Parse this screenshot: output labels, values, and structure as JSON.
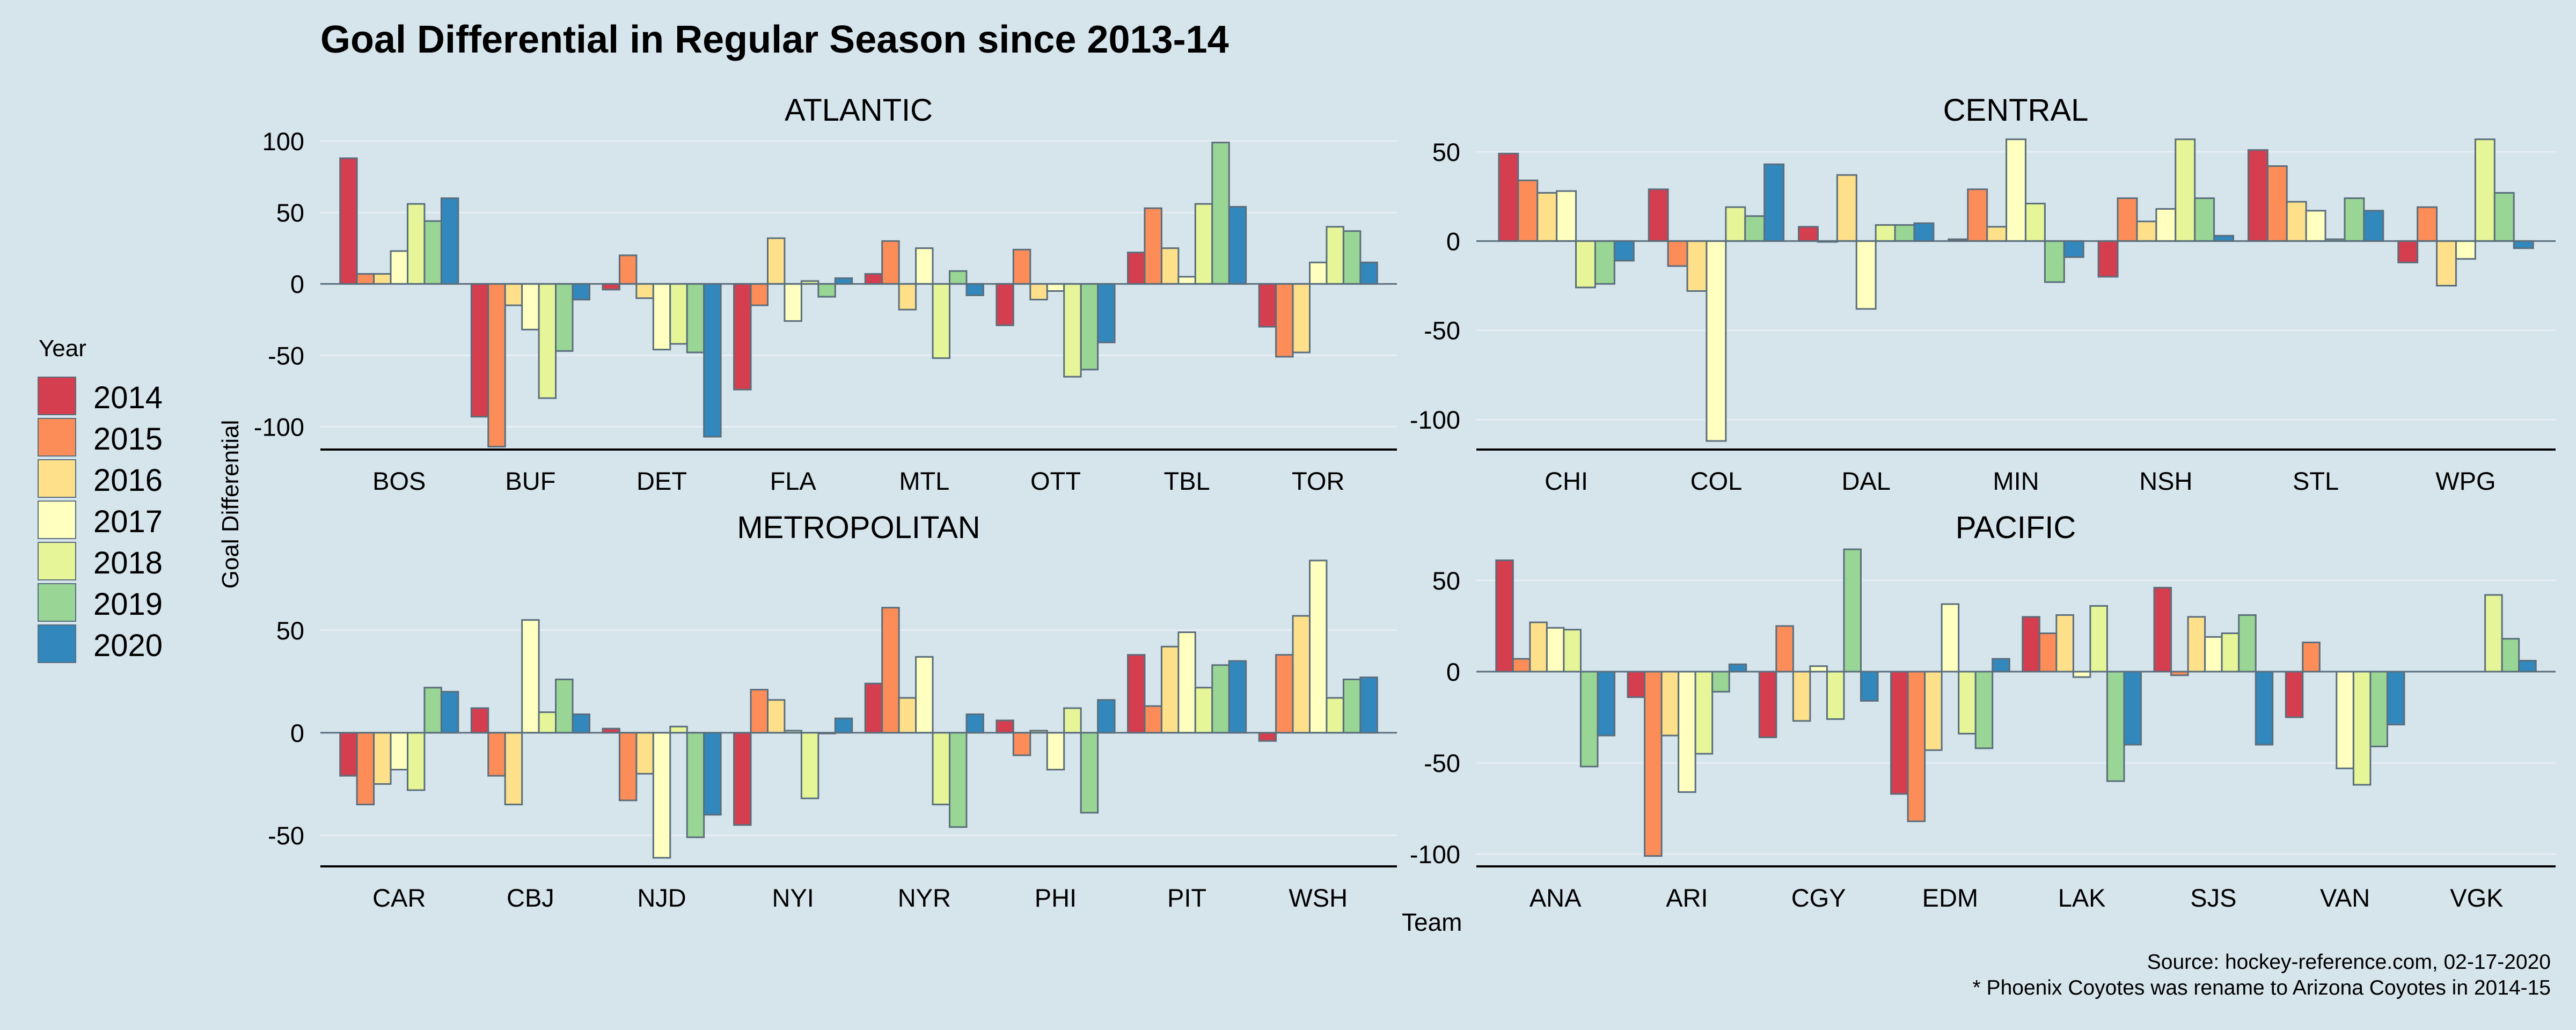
{
  "title": "Goal Differential in Regular Season since 2013-14",
  "ylabel": "Goal Differential",
  "xlabel": "Team",
  "source": "Source: hockey-reference.com, 02-17-2020",
  "note": "* Phoenix Coyotes was rename to Arizona Coyotes in 2014-15",
  "legend": {
    "title": "Year",
    "items": [
      {
        "label": "2014",
        "color": "#d53e4f"
      },
      {
        "label": "2015",
        "color": "#fc8d59"
      },
      {
        "label": "2016",
        "color": "#fee08b"
      },
      {
        "label": "2017",
        "color": "#ffffbf"
      },
      {
        "label": "2018",
        "color": "#e6f598"
      },
      {
        "label": "2019",
        "color": "#99d594"
      },
      {
        "label": "2020",
        "color": "#3288bd"
      }
    ]
  },
  "chart_data": [
    {
      "type": "bar",
      "title": "ATLANTIC",
      "ylim": [
        -110,
        100
      ],
      "yticks": [
        100,
        50,
        0,
        -50,
        -100
      ],
      "categories": [
        "BOS",
        "BUF",
        "DET",
        "FLA",
        "MTL",
        "OTT",
        "TBL",
        "TOR"
      ],
      "series": [
        {
          "name": "2014",
          "values": [
            88,
            -93,
            -4,
            -74,
            7,
            -29,
            22,
            -30
          ]
        },
        {
          "name": "2015",
          "values": [
            7,
            -114,
            20,
            -15,
            30,
            24,
            53,
            -51
          ]
        },
        {
          "name": "2016",
          "values": [
            7,
            -15,
            -10,
            32,
            -18,
            -11,
            25,
            -48
          ]
        },
        {
          "name": "2017",
          "values": [
            23,
            -32,
            -46,
            -26,
            25,
            -5,
            5,
            15
          ]
        },
        {
          "name": "2018",
          "values": [
            56,
            -80,
            -42,
            2,
            -52,
            -65,
            56,
            40
          ]
        },
        {
          "name": "2019",
          "values": [
            44,
            -47,
            -48,
            -9,
            9,
            -60,
            99,
            37
          ]
        },
        {
          "name": "2020",
          "values": [
            60,
            -11,
            -107,
            4,
            -8,
            -41,
            54,
            15
          ]
        }
      ]
    },
    {
      "type": "bar",
      "title": "CENTRAL",
      "ylim": [
        -112,
        56
      ],
      "yticks": [
        50,
        0,
        -50,
        -100
      ],
      "categories": [
        "CHI",
        "COL",
        "DAL",
        "MIN",
        "NSH",
        "STL",
        "WPG"
      ],
      "series": [
        {
          "name": "2014",
          "values": [
            49,
            29,
            8,
            1,
            -20,
            51,
            -12
          ]
        },
        {
          "name": "2015",
          "values": [
            34,
            -14,
            0,
            29,
            24,
            42,
            19
          ]
        },
        {
          "name": "2016",
          "values": [
            27,
            -28,
            37,
            8,
            11,
            22,
            -25
          ]
        },
        {
          "name": "2017",
          "values": [
            28,
            -112,
            -38,
            57,
            18,
            17,
            -10
          ]
        },
        {
          "name": "2018",
          "values": [
            -26,
            19,
            9,
            21,
            57,
            1,
            57
          ]
        },
        {
          "name": "2019",
          "values": [
            -24,
            14,
            9,
            -23,
            24,
            24,
            27
          ]
        },
        {
          "name": "2020",
          "values": [
            -11,
            43,
            10,
            -9,
            3,
            17,
            -4
          ]
        }
      ]
    },
    {
      "type": "bar",
      "title": "METROPOLITAN",
      "ylim": [
        -61,
        85
      ],
      "yticks": [
        50,
        0,
        -50
      ],
      "categories": [
        "CAR",
        "CBJ",
        "NJD",
        "NYI",
        "NYR",
        "PHI",
        "PIT",
        "WSH"
      ],
      "series": [
        {
          "name": "2014",
          "values": [
            -21,
            12,
            2,
            -45,
            24,
            6,
            38,
            -4
          ]
        },
        {
          "name": "2015",
          "values": [
            -35,
            -21,
            -33,
            21,
            61,
            -11,
            13,
            38
          ]
        },
        {
          "name": "2016",
          "values": [
            -25,
            -35,
            -20,
            16,
            17,
            1,
            42,
            57
          ]
        },
        {
          "name": "2017",
          "values": [
            -18,
            55,
            -61,
            1,
            37,
            -18,
            49,
            84
          ]
        },
        {
          "name": "2018",
          "values": [
            -28,
            10,
            3,
            -32,
            -35,
            12,
            22,
            17
          ]
        },
        {
          "name": "2019",
          "values": [
            22,
            26,
            -51,
            0,
            -46,
            -39,
            33,
            26
          ]
        },
        {
          "name": "2020",
          "values": [
            20,
            9,
            -40,
            7,
            9,
            16,
            35,
            27
          ]
        }
      ]
    },
    {
      "type": "bar",
      "title": "PACIFIC",
      "ylim": [
        -102,
        62
      ],
      "yticks": [
        50,
        0,
        -50,
        -100
      ],
      "categories": [
        "ANA",
        "ARI",
        "CGY",
        "EDM",
        "LAK",
        "SJS",
        "VAN",
        "VGK"
      ],
      "series": [
        {
          "name": "2014",
          "values": [
            61,
            -14,
            -36,
            -67,
            30,
            46,
            -25,
            null
          ]
        },
        {
          "name": "2015",
          "values": [
            7,
            -101,
            25,
            -82,
            21,
            -2,
            16,
            null
          ]
        },
        {
          "name": "2016",
          "values": [
            27,
            -35,
            -27,
            -43,
            31,
            30,
            null,
            null
          ]
        },
        {
          "name": "2017",
          "values": [
            24,
            -66,
            3,
            37,
            -3,
            19,
            -53,
            null
          ]
        },
        {
          "name": "2018",
          "values": [
            23,
            -45,
            -26,
            -34,
            36,
            21,
            -62,
            42
          ]
        },
        {
          "name": "2019",
          "values": [
            -52,
            -11,
            67,
            -42,
            -60,
            31,
            -41,
            18
          ]
        },
        {
          "name": "2020",
          "values": [
            -35,
            4,
            -16,
            7,
            -40,
            -40,
            -29,
            6
          ]
        }
      ]
    }
  ]
}
